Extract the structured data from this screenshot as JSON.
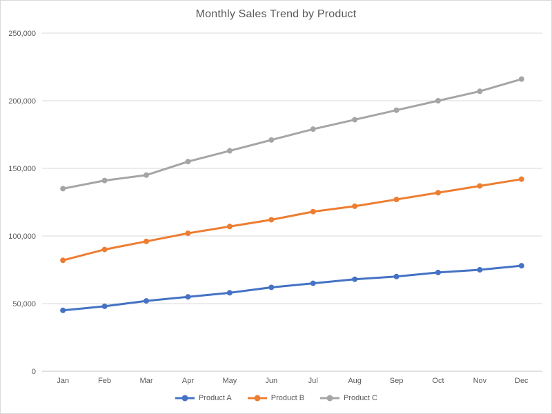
{
  "chart_data": {
    "type": "line",
    "title": "Monthly Sales Trend by Product",
    "categories": [
      "Jan",
      "Feb",
      "Mar",
      "Apr",
      "May",
      "Jun",
      "Jul",
      "Aug",
      "Sep",
      "Oct",
      "Nov",
      "Dec"
    ],
    "series": [
      {
        "name": "Product A",
        "color": "#4472C4",
        "values": [
          45000,
          48000,
          52000,
          55000,
          58000,
          62000,
          65000,
          68000,
          70000,
          73000,
          75000,
          78000
        ]
      },
      {
        "name": "Product B",
        "color": "#ED7D31",
        "values": [
          82000,
          90000,
          96000,
          102000,
          107000,
          112000,
          118000,
          122000,
          127000,
          132000,
          137000,
          142000
        ]
      },
      {
        "name": "Product C",
        "color": "#A5A5A5",
        "values": [
          135000,
          141000,
          145000,
          155000,
          163000,
          171000,
          179000,
          186000,
          193000,
          200000,
          207000,
          216000
        ]
      }
    ],
    "xlabel": "",
    "ylabel": "",
    "ylim": [
      0,
      250000
    ],
    "ytick_step": 50000,
    "ytick_labels": [
      "0",
      "50,000",
      "100,000",
      "150,000",
      "200,000",
      "250,000"
    ],
    "grid": true,
    "legend_position": "bottom",
    "marker": "circle",
    "text_color": "#595959",
    "gridline_color": "#d9d9d9",
    "axis_line_color": "#c6c6c6"
  }
}
